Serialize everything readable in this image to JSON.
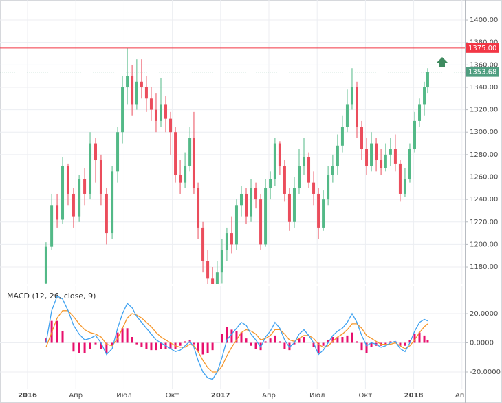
{
  "chart_data": [
    {
      "type": "candlestick",
      "x": [
        1.15,
        1.5,
        1.84,
        2.18,
        2.52,
        2.86,
        3.21,
        3.55,
        3.89,
        4.23,
        4.57,
        4.91,
        5.26,
        5.6,
        5.9,
        6.2,
        6.5,
        6.79,
        7.09,
        7.39,
        7.69,
        7.99,
        8.29,
        8.59,
        8.89,
        9.19,
        9.49,
        9.79,
        10.09,
        10.34,
        10.6,
        10.9,
        11.2,
        11.5,
        11.79,
        12.09,
        12.39,
        12.69,
        12.99,
        13.29,
        13.59,
        13.89,
        14.19,
        14.49,
        14.79,
        15.09,
        15.38,
        15.68,
        15.98,
        16.28,
        16.58,
        16.88,
        17.18,
        17.48,
        17.78,
        18.08,
        18.38,
        18.68,
        18.97,
        19.27,
        19.57,
        19.87,
        20.17,
        20.47,
        20.77,
        21.07,
        21.37,
        21.67,
        21.97,
        22.26,
        22.56,
        22.86,
        23.16,
        23.46,
        23.76,
        24.06,
        24.36,
        24.66,
        24.87
      ],
      "open": [
        1165,
        1198,
        1235,
        1222,
        1270,
        1245,
        1225,
        1258,
        1245,
        1290,
        1275,
        1245,
        1210,
        1265,
        1300,
        1340,
        1350,
        1325,
        1345,
        1340,
        1330,
        1320,
        1310,
        1325,
        1312,
        1300,
        1262,
        1255,
        1270,
        1295,
        1250,
        1215,
        1185,
        1170,
        1160,
        1175,
        1195,
        1210,
        1200,
        1235,
        1245,
        1225,
        1250,
        1240,
        1200,
        1250,
        1258,
        1290,
        1270,
        1245,
        1220,
        1250,
        1270,
        1278,
        1255,
        1245,
        1215,
        1240,
        1262,
        1270,
        1288,
        1305,
        1325,
        1340,
        1305,
        1285,
        1270,
        1290,
        1275,
        1268,
        1280,
        1285,
        1272,
        1245,
        1258,
        1285,
        1310,
        1325,
        1340
      ],
      "high": [
        1202,
        1245,
        1245,
        1278,
        1272,
        1250,
        1262,
        1268,
        1300,
        1295,
        1280,
        1250,
        1270,
        1305,
        1350,
        1375,
        1360,
        1365,
        1365,
        1350,
        1340,
        1335,
        1348,
        1332,
        1318,
        1305,
        1275,
        1282,
        1305,
        1318,
        1255,
        1220,
        1195,
        1180,
        1185,
        1205,
        1215,
        1225,
        1240,
        1252,
        1250,
        1258,
        1255,
        1245,
        1258,
        1265,
        1295,
        1292,
        1275,
        1250,
        1260,
        1285,
        1295,
        1282,
        1265,
        1250,
        1248,
        1270,
        1280,
        1298,
        1315,
        1338,
        1357,
        1345,
        1310,
        1295,
        1300,
        1295,
        1285,
        1290,
        1295,
        1298,
        1275,
        1268,
        1290,
        1318,
        1330,
        1345,
        1357
      ],
      "low": [
        1163,
        1195,
        1215,
        1218,
        1235,
        1215,
        1220,
        1235,
        1240,
        1255,
        1235,
        1200,
        1205,
        1255,
        1290,
        1325,
        1315,
        1320,
        1330,
        1318,
        1310,
        1300,
        1305,
        1300,
        1280,
        1255,
        1245,
        1250,
        1265,
        1245,
        1205,
        1175,
        1162,
        1158,
        1158,
        1165,
        1185,
        1192,
        1195,
        1225,
        1218,
        1220,
        1232,
        1195,
        1198,
        1240,
        1252,
        1262,
        1238,
        1212,
        1215,
        1245,
        1262,
        1250,
        1235,
        1205,
        1212,
        1235,
        1255,
        1262,
        1282,
        1300,
        1320,
        1295,
        1275,
        1262,
        1265,
        1265,
        1262,
        1265,
        1270,
        1265,
        1238,
        1242,
        1255,
        1282,
        1305,
        1315,
        1335
      ],
      "close": [
        1198,
        1235,
        1222,
        1270,
        1245,
        1225,
        1258,
        1245,
        1290,
        1275,
        1245,
        1210,
        1265,
        1300,
        1340,
        1350,
        1325,
        1345,
        1340,
        1330,
        1320,
        1310,
        1325,
        1312,
        1300,
        1262,
        1255,
        1270,
        1295,
        1250,
        1215,
        1185,
        1170,
        1160,
        1175,
        1195,
        1210,
        1200,
        1235,
        1245,
        1225,
        1250,
        1240,
        1200,
        1250,
        1258,
        1290,
        1270,
        1245,
        1220,
        1250,
        1270,
        1278,
        1255,
        1245,
        1215,
        1240,
        1262,
        1270,
        1288,
        1305,
        1325,
        1340,
        1305,
        1285,
        1270,
        1290,
        1275,
        1268,
        1280,
        1285,
        1272,
        1245,
        1258,
        1285,
        1310,
        1325,
        1340,
        1353.68
      ],
      "up_color": "#53b987",
      "down_color": "#eb4d5c",
      "xlim": [
        -1.71,
        27.18
      ],
      "ylim": [
        1164.7,
        1417.8
      ],
      "xticks": [
        {
          "value": 0,
          "label": "2016"
        },
        {
          "value": 3,
          "label": "Апр"
        },
        {
          "value": 6,
          "label": "Июл"
        },
        {
          "value": 9,
          "label": "Окт"
        },
        {
          "value": 12,
          "label": "2017"
        },
        {
          "value": 15,
          "label": "Апр"
        },
        {
          "value": 18,
          "label": "Июл"
        },
        {
          "value": 21,
          "label": "Окт"
        },
        {
          "value": 24,
          "label": "2018"
        },
        {
          "value": 27,
          "label": "Апр"
        }
      ],
      "yticks": [
        {
          "value": 1180,
          "label": "1180.00"
        },
        {
          "value": 1200,
          "label": "1200.00"
        },
        {
          "value": 1220,
          "label": "1220.00"
        },
        {
          "value": 1240,
          "label": "1240.00"
        },
        {
          "value": 1260,
          "label": "1260.00"
        },
        {
          "value": 1280,
          "label": "1280.00"
        },
        {
          "value": 1300,
          "label": "1300.00"
        },
        {
          "value": 1320,
          "label": "1320.00"
        },
        {
          "value": 1340,
          "label": "1340.00"
        },
        {
          "value": 1360,
          "label": "1360.00"
        },
        {
          "value": 1380,
          "label": "1380.00"
        },
        {
          "value": 1400,
          "label": "1400.00"
        }
      ],
      "hlines": [
        {
          "value": 1375,
          "label": "1375.00",
          "color": "#f23645"
        }
      ],
      "last_price_color": "#4f9e80",
      "grid": true
    },
    {
      "type": "macd",
      "title": "MACD (12, 26, close, 9)",
      "macd": {
        "color": "#3ea1f0",
        "values": [
          0,
          22,
          32,
          30,
          22,
          12,
          6,
          2,
          3,
          5,
          0,
          -8,
          -4,
          10,
          20,
          27,
          24,
          18,
          14,
          10,
          6,
          2,
          0,
          -2,
          -4,
          -6,
          -5,
          -2,
          1,
          -3,
          -12,
          -20,
          -24,
          -25,
          -20,
          -10,
          2,
          6,
          10,
          14,
          12,
          6,
          2,
          -3,
          4,
          8,
          14,
          10,
          2,
          -3,
          0,
          6,
          9,
          5,
          0,
          -8,
          -5,
          0,
          5,
          8,
          10,
          14,
          20,
          14,
          5,
          -2,
          0,
          -1,
          -3,
          -2,
          0,
          1,
          -4,
          -6,
          0,
          8,
          14,
          16,
          15
        ]
      },
      "signal": {
        "color": "#f5962a",
        "values": [
          -3,
          7,
          17,
          22,
          22,
          18,
          13,
          9,
          7,
          6,
          4,
          -1,
          -2,
          3,
          10,
          17,
          20,
          19,
          17,
          14,
          11,
          7,
          4,
          2,
          0,
          -2,
          -3,
          -3,
          -1,
          -2,
          -6,
          -12,
          -17,
          -20,
          -20,
          -16,
          -9,
          -3,
          2,
          7,
          9,
          8,
          6,
          2,
          3,
          5,
          9,
          9,
          6,
          2,
          1,
          3,
          5,
          5,
          3,
          -1,
          -3,
          -2,
          1,
          4,
          6,
          9,
          13,
          13,
          10,
          5,
          3,
          1,
          -1,
          -1,
          -1,
          0,
          -2,
          -4,
          -2,
          2,
          7,
          11,
          13
        ]
      },
      "histogram": {
        "color": "#e8106d",
        "values": [
          3,
          15,
          15,
          8,
          0,
          -6,
          -7,
          -7,
          -4,
          -1,
          -4,
          -7,
          -2,
          7,
          10,
          10,
          4,
          -1,
          -3,
          -4,
          -5,
          -5,
          -4,
          -4,
          -4,
          -4,
          -2,
          1,
          2,
          -1,
          -6,
          -8,
          -7,
          -5,
          0,
          6,
          11,
          9,
          8,
          7,
          3,
          -2,
          -4,
          -5,
          1,
          3,
          5,
          1,
          -4,
          -5,
          -1,
          3,
          4,
          0,
          -3,
          -7,
          -2,
          2,
          4,
          4,
          4,
          5,
          7,
          1,
          -5,
          -7,
          -3,
          -2,
          -2,
          -1,
          1,
          1,
          -2,
          -2,
          2,
          6,
          7,
          5,
          2
        ]
      },
      "ylim": [
        -31.3,
        37.9
      ],
      "yticks": [
        {
          "value": -20,
          "label": "-20.0000"
        },
        {
          "value": 0,
          "label": "0.0000"
        },
        {
          "value": 20,
          "label": "20.0000"
        }
      ],
      "grid": true
    }
  ]
}
